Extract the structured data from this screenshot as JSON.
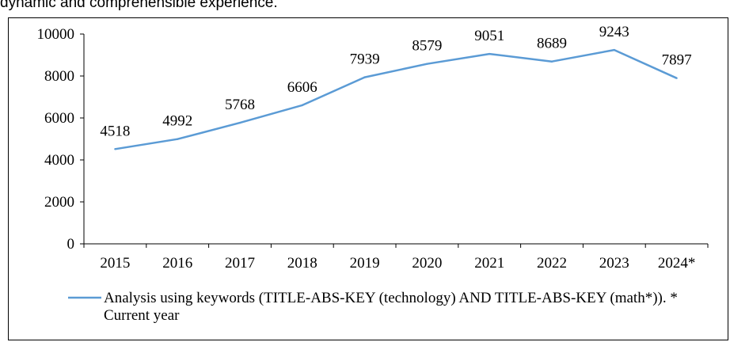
{
  "caption": "dynamic and comprehensible experience.",
  "chart_data": {
    "type": "line",
    "title": "",
    "xlabel": "",
    "ylabel": "",
    "categories": [
      "2015",
      "2016",
      "2017",
      "2018",
      "2019",
      "2020",
      "2021",
      "2022",
      "2023",
      "2024*"
    ],
    "series": [
      {
        "name": "Analysis using keywords (TITLE-ABS-KEY (technology) AND TITLE-ABS-KEY (math*)). * Current year",
        "values": [
          4518,
          4992,
          5768,
          6606,
          7939,
          8579,
          9051,
          8689,
          9243,
          7897
        ],
        "color": "#5b9bd5"
      }
    ],
    "ylim": [
      0,
      10000
    ],
    "yticks": [
      0,
      2000,
      4000,
      6000,
      8000,
      10000
    ],
    "grid": false,
    "legend": "bottom"
  }
}
